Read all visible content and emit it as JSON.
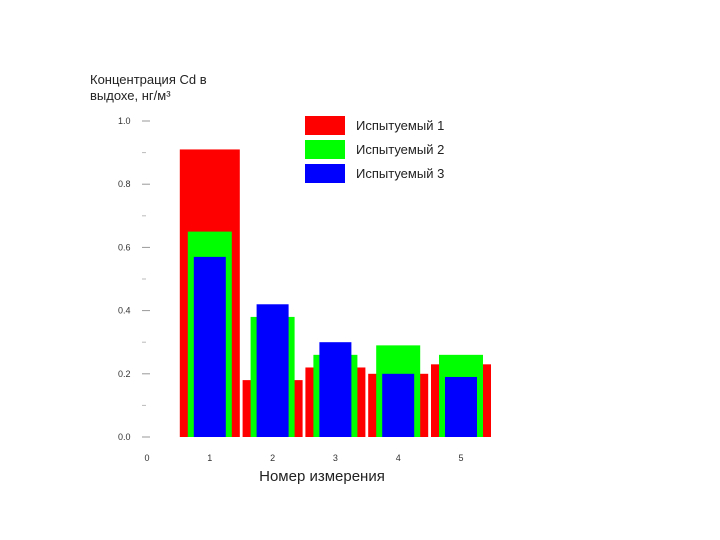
{
  "chart_data": {
    "type": "bar",
    "title": "",
    "ylabel_lines": [
      "Концентрация Cd в",
      "выдохе, нг/м³"
    ],
    "xlabel": "Номер измерения",
    "ylim": [
      0.0,
      1.0
    ],
    "yticks": [
      "0.0",
      "0.2",
      "0.4",
      "0.6",
      "0.8",
      "1.0"
    ],
    "xticks": [
      "0",
      "1",
      "2",
      "3",
      "4",
      "5"
    ],
    "categories": [
      "1",
      "2",
      "3",
      "4",
      "5"
    ],
    "series": [
      {
        "name": "Испытуемый 1",
        "color": "#ff0000",
        "values": [
          0.91,
          0.18,
          0.22,
          0.2,
          0.23
        ]
      },
      {
        "name": "Испытуемый 2",
        "color": "#00ff00",
        "values": [
          0.65,
          0.38,
          0.26,
          0.29,
          0.26
        ]
      },
      {
        "name": "Испытуемый 3",
        "color": "#0000ff",
        "values": [
          0.57,
          0.42,
          0.3,
          0.2,
          0.19
        ]
      }
    ],
    "legend_position": "top-right",
    "grid": false
  }
}
